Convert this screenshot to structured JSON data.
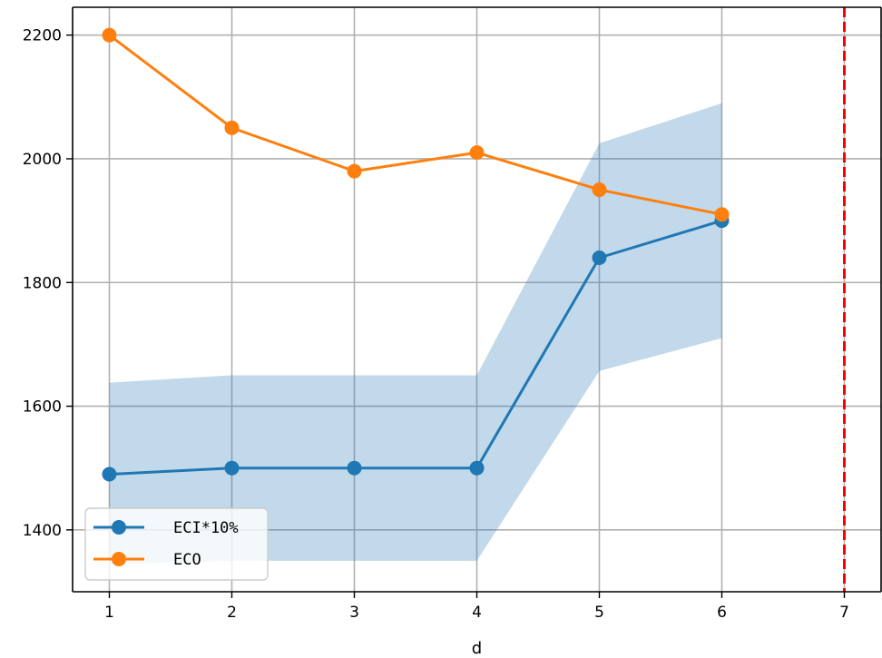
{
  "chart_data": {
    "type": "line",
    "title": "",
    "xlabel": "d",
    "ylabel": "",
    "x": [
      1,
      2,
      3,
      4,
      5,
      6
    ],
    "xticks": [
      1,
      2,
      3,
      4,
      5,
      6,
      7
    ],
    "yticks": [
      1400,
      1600,
      1800,
      2000,
      2200
    ],
    "xlim": [
      0.7,
      7.3
    ],
    "ylim": [
      1300,
      2245
    ],
    "grid": true,
    "legend_position": "lower-left",
    "series": [
      {
        "name": "ECI*10%",
        "color": "#1f77b4",
        "marker": "circle",
        "values": [
          1490,
          1500,
          1500,
          1500,
          1840,
          1900
        ],
        "band": {
          "lower": [
            1345,
            1350,
            1350,
            1350,
            1657,
            1710
          ],
          "upper": [
            1638,
            1650,
            1650,
            1650,
            2025,
            2090
          ],
          "color": "#1f77b4",
          "opacity": 0.28
        }
      },
      {
        "name": "ECO",
        "color": "#ff7f0e",
        "marker": "circle",
        "values": [
          2200,
          2050,
          1980,
          2010,
          1950,
          1910
        ]
      }
    ],
    "vline": {
      "x": 7,
      "color": "#ff0000",
      "style": "dashed"
    }
  }
}
